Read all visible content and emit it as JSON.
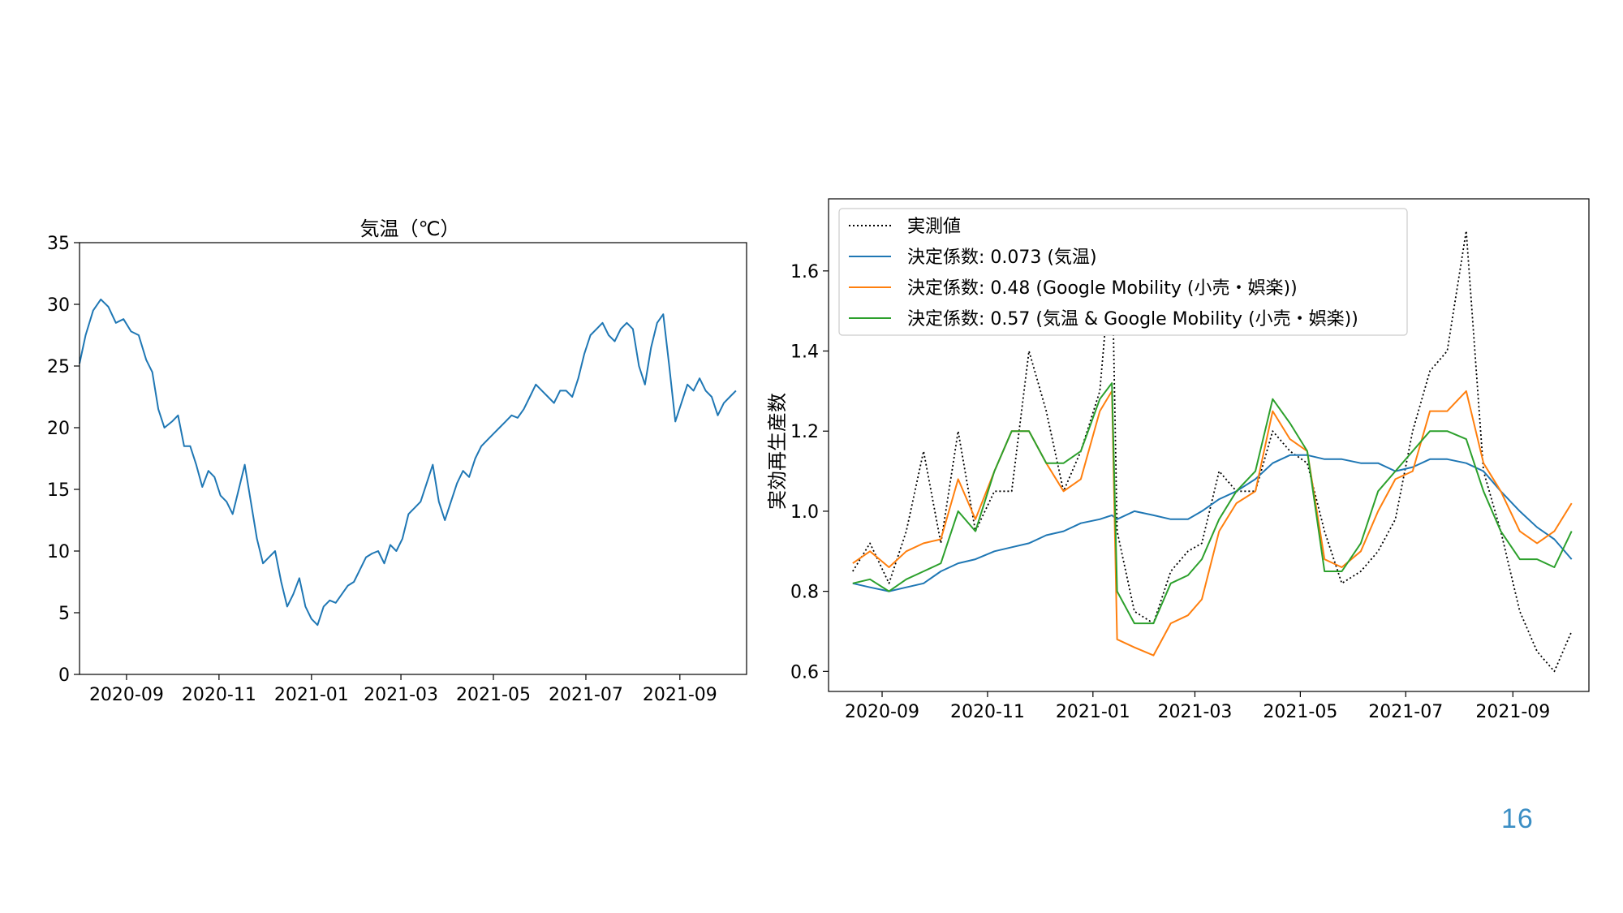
{
  "slide": {
    "page_number": "16"
  },
  "chart_data": [
    {
      "type": "line",
      "title": "気温（℃）",
      "xlabel": "",
      "ylabel": "",
      "xlim": [
        "2020-08-01",
        "2021-10-15"
      ],
      "ylim": [
        0,
        35
      ],
      "x_ticks": [
        "2020-09",
        "2020-11",
        "2021-01",
        "2021-03",
        "2021-05",
        "2021-07",
        "2021-09"
      ],
      "y_ticks": [
        "0",
        "5",
        "10",
        "15",
        "20",
        "25",
        "30",
        "35"
      ],
      "grid": false,
      "series": [
        {
          "color": "#1f77b4",
          "x": [
            "2020-08-01",
            "2020-08-05",
            "2020-08-10",
            "2020-08-15",
            "2020-08-20",
            "2020-08-25",
            "2020-08-30",
            "2020-09-04",
            "2020-09-09",
            "2020-09-14",
            "2020-09-18",
            "2020-09-22",
            "2020-09-26",
            "2020-10-01",
            "2020-10-05",
            "2020-10-09",
            "2020-10-13",
            "2020-10-17",
            "2020-10-21",
            "2020-10-25",
            "2020-10-29",
            "2020-11-02",
            "2020-11-06",
            "2020-11-10",
            "2020-11-14",
            "2020-11-18",
            "2020-11-22",
            "2020-11-26",
            "2020-11-30",
            "2020-12-04",
            "2020-12-08",
            "2020-12-12",
            "2020-12-16",
            "2020-12-20",
            "2020-12-24",
            "2020-12-28",
            "2021-01-01",
            "2021-01-05",
            "2021-01-09",
            "2021-01-13",
            "2021-01-17",
            "2021-01-21",
            "2021-01-25",
            "2021-01-29",
            "2021-02-02",
            "2021-02-06",
            "2021-02-10",
            "2021-02-14",
            "2021-02-18",
            "2021-02-22",
            "2021-02-26",
            "2021-03-02",
            "2021-03-06",
            "2021-03-10",
            "2021-03-14",
            "2021-03-18",
            "2021-03-22",
            "2021-03-26",
            "2021-03-30",
            "2021-04-03",
            "2021-04-07",
            "2021-04-11",
            "2021-04-15",
            "2021-04-19",
            "2021-04-23",
            "2021-04-27",
            "2021-05-01",
            "2021-05-05",
            "2021-05-09",
            "2021-05-13",
            "2021-05-17",
            "2021-05-21",
            "2021-05-25",
            "2021-05-29",
            "2021-06-02",
            "2021-06-06",
            "2021-06-10",
            "2021-06-14",
            "2021-06-18",
            "2021-06-22",
            "2021-06-26",
            "2021-06-30",
            "2021-07-04",
            "2021-07-08",
            "2021-07-12",
            "2021-07-16",
            "2021-07-20",
            "2021-07-24",
            "2021-07-28",
            "2021-08-01",
            "2021-08-05",
            "2021-08-09",
            "2021-08-13",
            "2021-08-17",
            "2021-08-21",
            "2021-08-25",
            "2021-08-29",
            "2021-09-02",
            "2021-09-06",
            "2021-09-10",
            "2021-09-14",
            "2021-09-18",
            "2021-09-22",
            "2021-09-26",
            "2021-09-30",
            "2021-10-04",
            "2021-10-08"
          ],
          "values": [
            25.2,
            27.5,
            29.5,
            30.4,
            29.8,
            28.5,
            28.8,
            27.8,
            27.5,
            25.5,
            24.5,
            21.5,
            20.0,
            20.5,
            21.0,
            18.5,
            18.5,
            17.0,
            15.2,
            16.5,
            16.0,
            14.5,
            14.0,
            13.0,
            15.0,
            17.0,
            14.0,
            11.0,
            9.0,
            9.5,
            10.0,
            7.5,
            5.5,
            6.5,
            7.8,
            5.5,
            4.5,
            4.0,
            5.5,
            6.0,
            5.8,
            6.5,
            7.2,
            7.5,
            8.5,
            9.5,
            9.8,
            10.0,
            9.0,
            10.5,
            10.0,
            11.0,
            13.0,
            13.5,
            14.0,
            15.5,
            17.0,
            14.0,
            12.5,
            14.0,
            15.5,
            16.5,
            16.0,
            17.5,
            18.5,
            19.0,
            19.5,
            20.0,
            20.5,
            21.0,
            20.8,
            21.5,
            22.5,
            23.5,
            23.0,
            22.5,
            22.0,
            23.0,
            23.0,
            22.5,
            24.0,
            26.0,
            27.5,
            28.0,
            28.5,
            27.5,
            27.0,
            28.0,
            28.5,
            28.0,
            25.0,
            23.5,
            26.5,
            28.5,
            29.2,
            25.0,
            20.5,
            22.0,
            23.5,
            23.0,
            24.0,
            23.0,
            22.5,
            21.0,
            22.0,
            22.5,
            23.0
          ]
        }
      ]
    },
    {
      "type": "line",
      "title": "",
      "xlabel": "",
      "ylabel": "実効再生産数",
      "xlim": [
        "2020-08-01",
        "2021-10-15"
      ],
      "ylim": [
        0.55,
        1.78
      ],
      "x_ticks": [
        "2020-09",
        "2020-11",
        "2021-01",
        "2021-03",
        "2021-05",
        "2021-07",
        "2021-09"
      ],
      "y_ticks": [
        "0.6",
        "0.8",
        "1.0",
        "1.2",
        "1.4",
        "1.6"
      ],
      "grid": false,
      "legend": "top-left",
      "x": [
        "2020-08-15",
        "2020-08-25",
        "2020-09-05",
        "2020-09-15",
        "2020-09-25",
        "2020-10-05",
        "2020-10-15",
        "2020-10-25",
        "2020-11-05",
        "2020-11-15",
        "2020-11-25",
        "2020-12-05",
        "2020-12-15",
        "2020-12-25",
        "2021-01-05",
        "2021-01-12",
        "2021-01-15",
        "2021-01-25",
        "2021-02-05",
        "2021-02-15",
        "2021-02-25",
        "2021-03-05",
        "2021-03-15",
        "2021-03-25",
        "2021-04-05",
        "2021-04-15",
        "2021-04-25",
        "2021-05-05",
        "2021-05-15",
        "2021-05-25",
        "2021-06-05",
        "2021-06-15",
        "2021-06-25",
        "2021-07-05",
        "2021-07-15",
        "2021-07-25",
        "2021-08-05",
        "2021-08-15",
        "2021-08-25",
        "2021-09-05",
        "2021-09-15",
        "2021-09-25",
        "2021-10-05"
      ],
      "series": [
        {
          "name": "実測値",
          "color": "#000000",
          "dash": "dotted",
          "values": [
            0.85,
            0.92,
            0.82,
            0.95,
            1.15,
            0.92,
            1.2,
            0.95,
            1.05,
            1.05,
            1.4,
            1.25,
            1.05,
            1.15,
            1.3,
            1.65,
            0.95,
            0.75,
            0.72,
            0.85,
            0.9,
            0.92,
            1.1,
            1.05,
            1.05,
            1.2,
            1.15,
            1.12,
            0.95,
            0.82,
            0.85,
            0.9,
            0.98,
            1.2,
            1.35,
            1.4,
            1.7,
            1.1,
            0.95,
            0.75,
            0.65,
            0.6,
            0.7
          ]
        },
        {
          "name": "決定係数: 0.073 (気温)",
          "color": "#1f77b4",
          "values": [
            0.82,
            0.81,
            0.8,
            0.81,
            0.82,
            0.85,
            0.87,
            0.88,
            0.9,
            0.91,
            0.92,
            0.94,
            0.95,
            0.97,
            0.98,
            0.99,
            0.98,
            1.0,
            0.99,
            0.98,
            0.98,
            1.0,
            1.03,
            1.05,
            1.08,
            1.12,
            1.14,
            1.14,
            1.13,
            1.13,
            1.12,
            1.12,
            1.1,
            1.11,
            1.13,
            1.13,
            1.12,
            1.1,
            1.05,
            1.0,
            0.96,
            0.93,
            0.88
          ]
        },
        {
          "name": "決定係数: 0.48 (Google Mobility (小売・娯楽))",
          "color": "#ff7f0e",
          "values": [
            0.87,
            0.9,
            0.86,
            0.9,
            0.92,
            0.93,
            1.08,
            0.98,
            1.1,
            1.2,
            1.2,
            1.12,
            1.05,
            1.08,
            1.25,
            1.3,
            0.68,
            0.66,
            0.64,
            0.72,
            0.74,
            0.78,
            0.95,
            1.02,
            1.05,
            1.25,
            1.18,
            1.15,
            0.88,
            0.86,
            0.9,
            1.0,
            1.08,
            1.1,
            1.25,
            1.25,
            1.3,
            1.12,
            1.05,
            0.95,
            0.92,
            0.95,
            1.02
          ]
        },
        {
          "name": "決定係数: 0.57 (気温 & Google Mobility (小売・娯楽))",
          "color": "#2ca02c",
          "values": [
            0.82,
            0.83,
            0.8,
            0.83,
            0.85,
            0.87,
            1.0,
            0.95,
            1.1,
            1.2,
            1.2,
            1.12,
            1.12,
            1.15,
            1.28,
            1.32,
            0.8,
            0.72,
            0.72,
            0.82,
            0.84,
            0.88,
            0.98,
            1.05,
            1.1,
            1.28,
            1.22,
            1.15,
            0.85,
            0.85,
            0.92,
            1.05,
            1.1,
            1.15,
            1.2,
            1.2,
            1.18,
            1.05,
            0.95,
            0.88,
            0.88,
            0.86,
            0.95
          ]
        }
      ]
    }
  ]
}
